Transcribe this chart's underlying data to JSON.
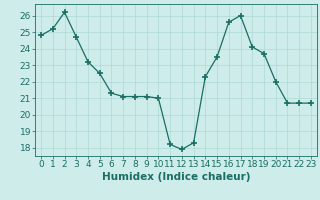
{
  "x": [
    0,
    1,
    2,
    3,
    4,
    5,
    6,
    7,
    8,
    9,
    10,
    11,
    12,
    13,
    14,
    15,
    16,
    17,
    18,
    19,
    20,
    21,
    22,
    23
  ],
  "y": [
    24.8,
    25.2,
    26.2,
    24.7,
    23.2,
    22.5,
    21.3,
    21.1,
    21.1,
    21.1,
    21.0,
    18.2,
    17.9,
    18.3,
    22.3,
    23.5,
    25.6,
    26.0,
    24.1,
    23.7,
    22.0,
    20.7,
    20.7,
    20.7
  ],
  "xlabel": "Humidex (Indice chaleur)",
  "ylim": [
    17.5,
    26.7
  ],
  "xlim": [
    -0.5,
    23.5
  ],
  "yticks": [
    18,
    19,
    20,
    21,
    22,
    23,
    24,
    25,
    26
  ],
  "xticks": [
    0,
    1,
    2,
    3,
    4,
    5,
    6,
    7,
    8,
    9,
    10,
    11,
    12,
    13,
    14,
    15,
    16,
    17,
    18,
    19,
    20,
    21,
    22,
    23
  ],
  "line_color": "#1a6e64",
  "marker_color": "#1a6e64",
  "bg_color": "#cdecea",
  "grid_color": "#aed8d4",
  "tick_color": "#1a6e64",
  "label_color": "#1a6e64",
  "font_size": 6.5,
  "xlabel_fontsize": 7.5
}
